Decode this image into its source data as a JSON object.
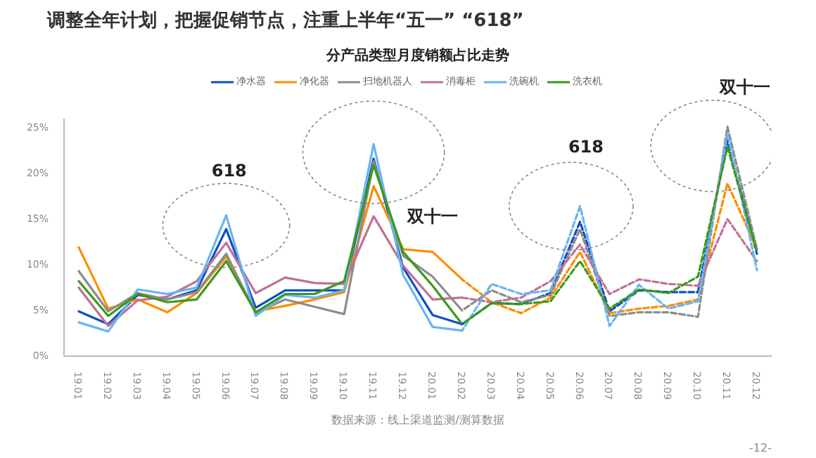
{
  "chart_data": {
    "type": "line",
    "title": "调整全年计划，把握促销节点，注重上半年“五一” “618”",
    "subtitle": "分产品类型月度销额占比走势",
    "categories": [
      "19.01",
      "19.02",
      "19.03",
      "19.04",
      "19.05",
      "19.06",
      "19.07",
      "19.08",
      "19.09",
      "19.10",
      "19.11",
      "19.12",
      "20.01",
      "20.02",
      "20.03",
      "20.04",
      "20.05",
      "20.06",
      "20.07",
      "20.08",
      "20.09",
      "20.10",
      "20.11",
      "20.12"
    ],
    "ylim": [
      0,
      26
    ],
    "yticks": [
      {
        "value": 0,
        "label": "0%"
      },
      {
        "value": 5,
        "label": "5%"
      },
      {
        "value": 10,
        "label": "10%"
      },
      {
        "value": 15,
        "label": "15%"
      },
      {
        "value": 20,
        "label": "20%"
      },
      {
        "value": 25,
        "label": "25%"
      }
    ],
    "legend": "top",
    "series": [
      {
        "name": "净水器",
        "color": "#0b4fbf",
        "line_style": "solid",
        "values": [
          4.9,
          3.5,
          6.7,
          6.2,
          7.2,
          13.9,
          5.3,
          7.2,
          7.2,
          7.2,
          21.6,
          9.7,
          4.5,
          3.5,
          null,
          null,
          null,
          null,
          null,
          null,
          null,
          null,
          null,
          null
        ]
      },
      {
        "name": "净化器",
        "color": "#ff8c00",
        "line_style": "solid",
        "values": [
          11.9,
          5.2,
          6.2,
          4.8,
          6.9,
          10.9,
          4.9,
          5.5,
          6.2,
          7.0,
          18.6,
          11.7,
          11.4,
          8.4,
          null,
          null,
          null,
          null,
          null,
          null,
          null,
          null,
          null,
          null
        ]
      },
      {
        "name": "扫地机器人",
        "color": "#8c8c8c",
        "line_style": "solid",
        "values": [
          9.3,
          4.9,
          6.9,
          6.2,
          7.0,
          11.2,
          4.7,
          6.2,
          5.4,
          4.6,
          21.3,
          11.0,
          8.7,
          5.0,
          null,
          null,
          null,
          null,
          null,
          null,
          null,
          null,
          null,
          null
        ]
      },
      {
        "name": "消毒柜",
        "color": "#c0709a",
        "line_style": "solid",
        "values": [
          7.5,
          3.3,
          6.1,
          6.5,
          8.2,
          12.4,
          6.9,
          8.6,
          8.0,
          7.9,
          15.3,
          9.9,
          6.2,
          6.4,
          null,
          null,
          null,
          null,
          null,
          null,
          null,
          null,
          null,
          null
        ]
      },
      {
        "name": "洗碗机",
        "color": "#6ab4f0",
        "line_style": "solid",
        "values": [
          3.7,
          2.7,
          7.3,
          6.8,
          7.5,
          15.4,
          4.4,
          6.7,
          6.4,
          7.2,
          23.2,
          8.9,
          3.2,
          2.8,
          null,
          null,
          null,
          null,
          null,
          null,
          null,
          null,
          null,
          null
        ]
      },
      {
        "name": "洗衣机",
        "color": "#3a9a1a",
        "line_style": "solid",
        "values": [
          8.2,
          4.4,
          6.8,
          5.9,
          6.2,
          10.4,
          4.8,
          6.8,
          6.8,
          8.2,
          20.9,
          11.4,
          7.7,
          3.5,
          null,
          null,
          null,
          null,
          null,
          null,
          null,
          null,
          null,
          null
        ]
      },
      {
        "color": "#0b4fbf",
        "line_style": "dashed",
        "values": [
          null,
          null,
          null,
          null,
          null,
          null,
          null,
          null,
          null,
          null,
          null,
          null,
          null,
          3.5,
          5.8,
          5.7,
          6.9,
          14.7,
          4.9,
          7.2,
          7.0,
          7.0,
          23.6,
          11.2
        ]
      },
      {
        "color": "#ff8c00",
        "line_style": "dashed",
        "values": [
          null,
          null,
          null,
          null,
          null,
          null,
          null,
          null,
          null,
          null,
          null,
          null,
          null,
          8.4,
          5.9,
          4.7,
          6.4,
          11.4,
          4.7,
          5.2,
          5.5,
          6.2,
          18.9,
          11.7
        ]
      },
      {
        "color": "#8c8c8c",
        "line_style": "dashed",
        "values": [
          null,
          null,
          null,
          null,
          null,
          null,
          null,
          null,
          null,
          null,
          null,
          null,
          null,
          5.0,
          7.2,
          5.9,
          6.7,
          13.9,
          4.4,
          4.8,
          4.8,
          4.3,
          25.1,
          11.7
        ]
      },
      {
        "color": "#c0709a",
        "line_style": "dashed",
        "values": [
          null,
          null,
          null,
          null,
          null,
          null,
          null,
          null,
          null,
          null,
          null,
          null,
          null,
          6.4,
          5.9,
          6.4,
          8.2,
          12.2,
          6.8,
          8.4,
          7.9,
          7.7,
          15.0,
          10.4
        ]
      },
      {
        "color": "#6ab4f0",
        "line_style": "dashed",
        "values": [
          null,
          null,
          null,
          null,
          null,
          null,
          null,
          null,
          null,
          null,
          null,
          null,
          null,
          2.8,
          7.9,
          6.8,
          7.2,
          16.4,
          3.3,
          7.8,
          5.2,
          6.0,
          24.4,
          9.4
        ]
      },
      {
        "color": "#3a9a1a",
        "line_style": "dashed",
        "values": [
          null,
          null,
          null,
          null,
          null,
          null,
          null,
          null,
          null,
          null,
          null,
          null,
          null,
          3.5,
          5.8,
          5.7,
          6.0,
          10.4,
          5.2,
          7.3,
          6.9,
          8.7,
          22.9,
          11.4
        ]
      }
    ],
    "annotations": [
      "618",
      "双十一",
      "618",
      "双十一",
      "数据来源：线上渠道监测/测算数据",
      "-12-"
    ]
  }
}
